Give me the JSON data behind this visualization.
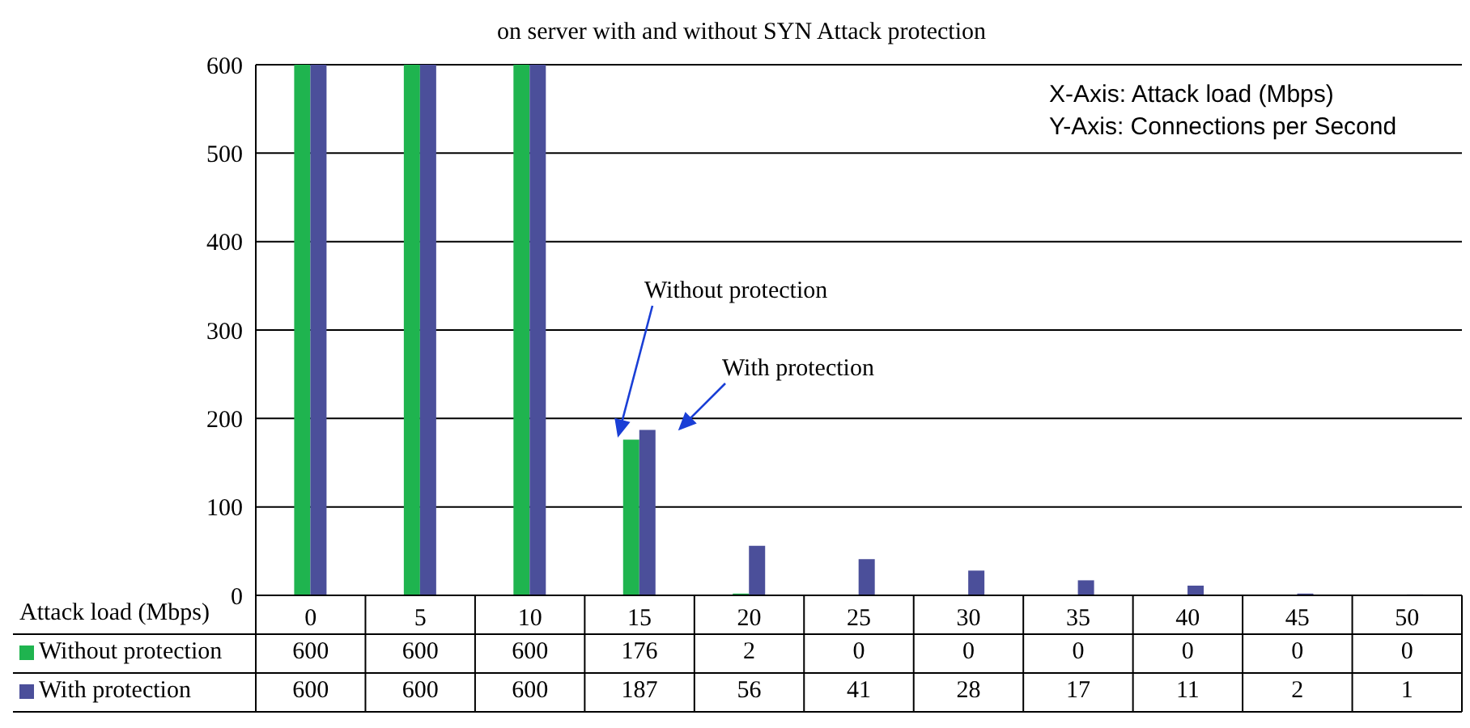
{
  "chart_data": {
    "type": "bar",
    "title": "on server with and without SYN Attack protection",
    "xlabel": "Attack load (Mbps)",
    "categories": [
      "0",
      "5",
      "10",
      "15",
      "20",
      "25",
      "30",
      "35",
      "40",
      "45",
      "50"
    ],
    "series": [
      {
        "name": "Without protection",
        "color": "#1fb44f",
        "values": [
          600,
          600,
          600,
          176,
          2,
          0,
          0,
          0,
          0,
          0,
          0
        ]
      },
      {
        "name": "With protection",
        "color": "#4b4f9a",
        "values": [
          600,
          600,
          600,
          187,
          56,
          41,
          28,
          17,
          11,
          2,
          1
        ]
      }
    ],
    "ylim": [
      0,
      600
    ],
    "yticks": [
      0,
      100,
      200,
      300,
      400,
      500,
      600
    ],
    "grid": "y",
    "legend": "bottom",
    "data_labels": true,
    "annotations": [
      "X-Axis: Attack load (Mbps)",
      "Y-Axis: Connections per Second",
      "Without protection",
      "With protection"
    ]
  }
}
